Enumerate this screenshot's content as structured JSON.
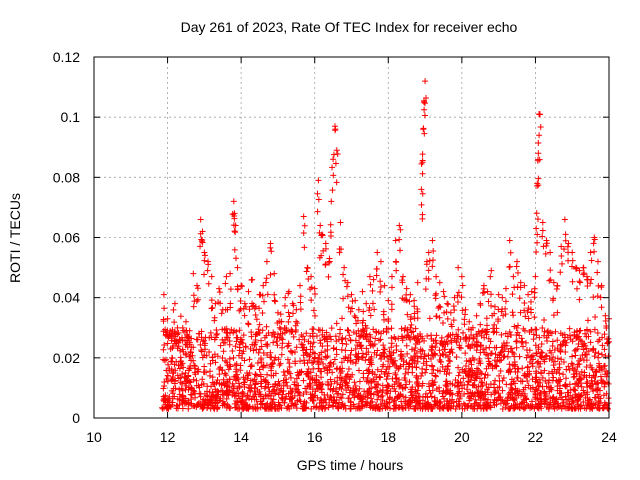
{
  "chart_data": {
    "type": "scatter",
    "title": "Day 261 of 2023, Rate Of TEC Index for receiver echo",
    "xlabel": "GPS time / hours",
    "ylabel": "ROTI / TECUs",
    "xlim": [
      10,
      24
    ],
    "ylim": [
      0,
      0.12
    ],
    "x_ticks": [
      "10",
      "12",
      "14",
      "16",
      "18",
      "20",
      "22",
      "24"
    ],
    "y_ticks": [
      "0",
      "0.02",
      "0.04",
      "0.06",
      "0.08",
      "0.1",
      "0.12"
    ],
    "grid": true,
    "marker": "+",
    "color": "#ff0000",
    "series": [
      {
        "points": [
          [
            11.9,
            0.041
          ],
          [
            12.0,
            0.033
          ],
          [
            12.1,
            0.028
          ],
          [
            12.2,
            0.038
          ],
          [
            12.3,
            0.025
          ],
          [
            12.5,
            0.032
          ],
          [
            12.6,
            0.029
          ],
          [
            12.7,
            0.048
          ],
          [
            12.8,
            0.044
          ],
          [
            12.9,
            0.066
          ],
          [
            12.95,
            0.062
          ],
          [
            13.0,
            0.055
          ],
          [
            13.1,
            0.052
          ],
          [
            13.2,
            0.047
          ],
          [
            13.3,
            0.038
          ],
          [
            13.4,
            0.043
          ],
          [
            13.5,
            0.036
          ],
          [
            13.6,
            0.047
          ],
          [
            13.7,
            0.048
          ],
          [
            13.8,
            0.072
          ],
          [
            13.82,
            0.068
          ],
          [
            13.85,
            0.064
          ],
          [
            13.9,
            0.05
          ],
          [
            14.0,
            0.044
          ],
          [
            14.1,
            0.038
          ],
          [
            14.2,
            0.042
          ],
          [
            14.3,
            0.046
          ],
          [
            14.4,
            0.037
          ],
          [
            14.5,
            0.041
          ],
          [
            14.6,
            0.044
          ],
          [
            14.7,
            0.052
          ],
          [
            14.8,
            0.058
          ],
          [
            14.9,
            0.048
          ],
          [
            15.0,
            0.035
          ],
          [
            15.1,
            0.032
          ],
          [
            15.2,
            0.04
          ],
          [
            15.3,
            0.042
          ],
          [
            15.4,
            0.038
          ],
          [
            15.5,
            0.036
          ],
          [
            15.6,
            0.044
          ],
          [
            15.7,
            0.067
          ],
          [
            15.8,
            0.05
          ],
          [
            15.9,
            0.047
          ],
          [
            16.0,
            0.043
          ],
          [
            16.1,
            0.079
          ],
          [
            16.15,
            0.064
          ],
          [
            16.2,
            0.061
          ],
          [
            16.3,
            0.058
          ],
          [
            16.4,
            0.053
          ],
          [
            16.45,
            0.072
          ],
          [
            16.5,
            0.086
          ],
          [
            16.55,
            0.097
          ],
          [
            16.6,
            0.089
          ],
          [
            16.7,
            0.065
          ],
          [
            16.8,
            0.05
          ],
          [
            16.9,
            0.045
          ],
          [
            17.0,
            0.041
          ],
          [
            17.1,
            0.039
          ],
          [
            17.2,
            0.036
          ],
          [
            17.3,
            0.042
          ],
          [
            17.4,
            0.038
          ],
          [
            17.5,
            0.047
          ],
          [
            17.6,
            0.046
          ],
          [
            17.7,
            0.055
          ],
          [
            17.8,
            0.052
          ],
          [
            17.9,
            0.044
          ],
          [
            18.0,
            0.039
          ],
          [
            18.1,
            0.047
          ],
          [
            18.2,
            0.059
          ],
          [
            18.3,
            0.064
          ],
          [
            18.4,
            0.047
          ],
          [
            18.5,
            0.043
          ],
          [
            18.6,
            0.041
          ],
          [
            18.7,
            0.039
          ],
          [
            18.8,
            0.045
          ],
          [
            18.9,
            0.076
          ],
          [
            18.93,
            0.085
          ],
          [
            18.95,
            0.096
          ],
          [
            18.97,
            0.105
          ],
          [
            19.0,
            0.112
          ],
          [
            19.05,
            0.052
          ],
          [
            19.1,
            0.055
          ],
          [
            19.2,
            0.059
          ],
          [
            19.3,
            0.047
          ],
          [
            19.4,
            0.045
          ],
          [
            19.5,
            0.042
          ],
          [
            19.6,
            0.038
          ],
          [
            19.7,
            0.035
          ],
          [
            19.8,
            0.04
          ],
          [
            19.9,
            0.05
          ],
          [
            20.0,
            0.047
          ],
          [
            20.1,
            0.036
          ],
          [
            20.2,
            0.032
          ],
          [
            20.3,
            0.03
          ],
          [
            20.4,
            0.034
          ],
          [
            20.5,
            0.038
          ],
          [
            20.6,
            0.044
          ],
          [
            20.7,
            0.042
          ],
          [
            20.8,
            0.049
          ],
          [
            20.9,
            0.037
          ],
          [
            21.0,
            0.041
          ],
          [
            21.1,
            0.04
          ],
          [
            21.2,
            0.043
          ],
          [
            21.3,
            0.059
          ],
          [
            21.4,
            0.047
          ],
          [
            21.5,
            0.052
          ],
          [
            21.6,
            0.045
          ],
          [
            21.7,
            0.044
          ],
          [
            21.8,
            0.041
          ],
          [
            21.9,
            0.042
          ],
          [
            22.0,
            0.047
          ],
          [
            22.02,
            0.063
          ],
          [
            22.05,
            0.078
          ],
          [
            22.08,
            0.088
          ],
          [
            22.1,
            0.094
          ],
          [
            22.12,
            0.101
          ],
          [
            22.2,
            0.065
          ],
          [
            22.3,
            0.059
          ],
          [
            22.4,
            0.055
          ],
          [
            22.5,
            0.045
          ],
          [
            22.6,
            0.044
          ],
          [
            22.7,
            0.057
          ],
          [
            22.8,
            0.066
          ],
          [
            22.9,
            0.058
          ],
          [
            23.0,
            0.055
          ],
          [
            23.1,
            0.05
          ],
          [
            23.2,
            0.049
          ],
          [
            23.3,
            0.05
          ],
          [
            23.4,
            0.047
          ],
          [
            23.5,
            0.055
          ],
          [
            23.6,
            0.06
          ],
          [
            23.7,
            0.052
          ],
          [
            23.8,
            0.044
          ],
          [
            23.9,
            0.034
          ],
          [
            24.0,
            0.033
          ]
        ],
        "background_density": {
          "x_range": [
            11.85,
            24.0
          ],
          "typical_range": [
            0.003,
            0.03
          ],
          "mean": 0.013
        }
      }
    ]
  }
}
